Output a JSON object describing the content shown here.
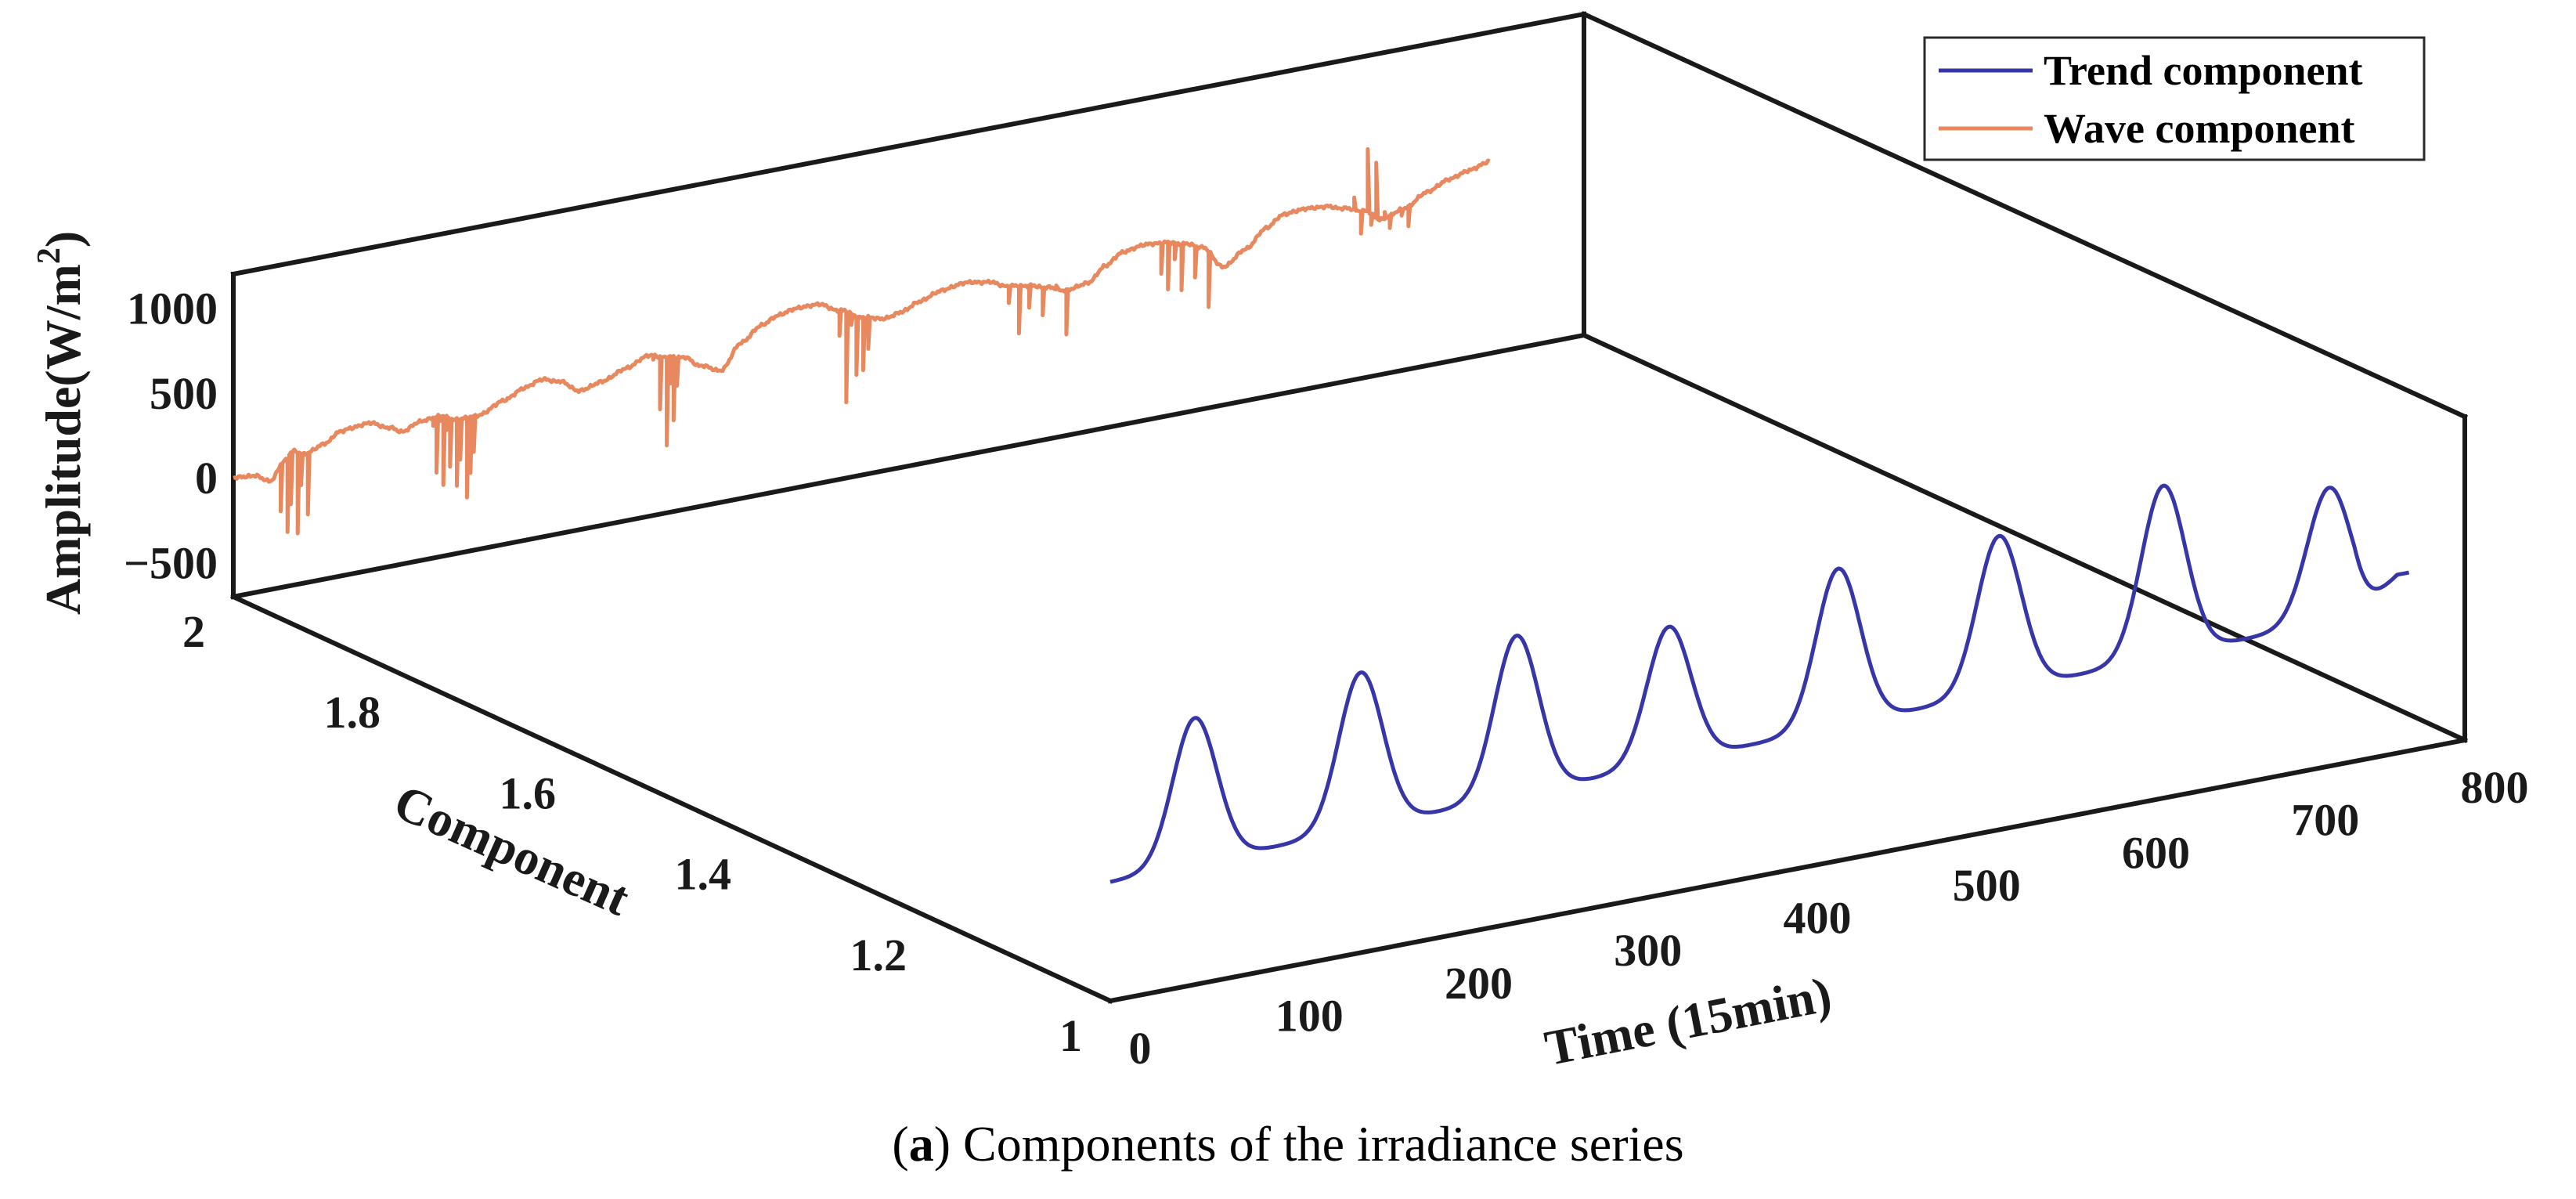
{
  "chart_data": {
    "type": "line",
    "projection": "3d",
    "caption_label": "a",
    "caption_text": ") Components of the irradiance series",
    "caption_prefix": "(",
    "xlabel": "Time (15min)",
    "ylabel": "Component",
    "zlabel_main": "Amplitude(W/m",
    "zlabel_sup": "2",
    "zlabel_close": ")",
    "xlim": [
      0,
      800
    ],
    "ylim": [
      1,
      2
    ],
    "zlim": [
      -700,
      1200
    ],
    "x_ticks": [
      "0",
      "100",
      "200",
      "300",
      "400",
      "500",
      "600",
      "700",
      "800"
    ],
    "x_tick_values": [
      0,
      100,
      200,
      300,
      400,
      500,
      600,
      700,
      800
    ],
    "y_ticks": [
      "1",
      "1.2",
      "1.4",
      "1.6",
      "1.8",
      "2"
    ],
    "y_tick_values": [
      1,
      1.2,
      1.4,
      1.6,
      1.8,
      2
    ],
    "z_ticks": [
      "1000",
      "500",
      "0",
      "−500"
    ],
    "z_tick_values": [
      1000,
      500,
      0,
      -500
    ],
    "series": [
      {
        "name": "Trend component",
        "color": "#3636a8",
        "component": 1,
        "base_start": 0,
        "base_end": 150,
        "peaks": [
          {
            "x": 50,
            "z": 870
          },
          {
            "x": 148,
            "z": 950
          },
          {
            "x": 240,
            "z": 990
          },
          {
            "x": 330,
            "z": 870
          },
          {
            "x": 430,
            "z": 1020
          },
          {
            "x": 525,
            "z": 1030
          },
          {
            "x": 622,
            "z": 1140
          },
          {
            "x": 720,
            "z": 940
          }
        ],
        "end_value": 350,
        "x_end": 767
      },
      {
        "name": "Wave component",
        "color": "#e8885e",
        "component": 2,
        "anchors": [
          [
            0,
            0
          ],
          [
            12,
            -10
          ],
          [
            22,
            -60
          ],
          [
            30,
            40
          ],
          [
            35,
            90
          ],
          [
            42,
            60
          ],
          [
            55,
            100
          ],
          [
            62,
            150
          ],
          [
            70,
            160
          ],
          [
            80,
            170
          ],
          [
            92,
            120
          ],
          [
            100,
            80
          ],
          [
            110,
            120
          ],
          [
            122,
            130
          ],
          [
            132,
            90
          ],
          [
            145,
            90
          ],
          [
            160,
            150
          ],
          [
            172,
            200
          ],
          [
            182,
            230
          ],
          [
            192,
            200
          ],
          [
            205,
            120
          ],
          [
            218,
            150
          ],
          [
            232,
            200
          ],
          [
            245,
            250
          ],
          [
            256,
            220
          ],
          [
            266,
            200
          ],
          [
            276,
            130
          ],
          [
            288,
            80
          ],
          [
            300,
            220
          ],
          [
            312,
            300
          ],
          [
            322,
            340
          ],
          [
            332,
            360
          ],
          [
            345,
            360
          ],
          [
            358,
            300
          ],
          [
            372,
            230
          ],
          [
            385,
            200
          ],
          [
            395,
            220
          ],
          [
            405,
            260
          ],
          [
            418,
            300
          ],
          [
            432,
            320
          ],
          [
            445,
            300
          ],
          [
            458,
            250
          ],
          [
            470,
            230
          ],
          [
            480,
            200
          ],
          [
            492,
            160
          ],
          [
            505,
            180
          ],
          [
            515,
            260
          ],
          [
            525,
            320
          ],
          [
            538,
            340
          ],
          [
            550,
            330
          ],
          [
            562,
            300
          ],
          [
            572,
            260
          ],
          [
            585,
            120
          ],
          [
            598,
            200
          ],
          [
            610,
            300
          ],
          [
            620,
            360
          ],
          [
            632,
            370
          ],
          [
            645,
            360
          ],
          [
            655,
            330
          ],
          [
            668,
            290
          ],
          [
            678,
            220
          ],
          [
            692,
            260
          ],
          [
            705,
            330
          ],
          [
            718,
            380
          ],
          [
            730,
            410
          ],
          [
            742,
            440
          ]
        ],
        "spikes": [
          [
            28,
            -250
          ],
          [
            32,
            -380
          ],
          [
            34,
            -220
          ],
          [
            38,
            -400
          ],
          [
            40,
            -120
          ],
          [
            44,
            -300
          ],
          [
            118,
            80
          ],
          [
            120,
            -200
          ],
          [
            122,
            100
          ],
          [
            124,
            -280
          ],
          [
            126,
            40
          ],
          [
            128,
            -180
          ],
          [
            132,
            -300
          ],
          [
            134,
            -150
          ],
          [
            138,
            -380
          ],
          [
            140,
            -240
          ],
          [
            142,
            -120
          ],
          [
            248,
            220
          ],
          [
            252,
            -80
          ],
          [
            256,
            -300
          ],
          [
            258,
            60
          ],
          [
            260,
            -160
          ],
          [
            262,
            40
          ],
          [
            358,
            150
          ],
          [
            362,
            -250
          ],
          [
            365,
            200
          ],
          [
            368,
            -100
          ],
          [
            372,
            -80
          ],
          [
            375,
            40
          ],
          [
            458,
            150
          ],
          [
            464,
            -40
          ],
          [
            470,
            100
          ],
          [
            478,
            40
          ],
          [
            486,
            200
          ],
          [
            492,
            -100
          ],
          [
            548,
            150
          ],
          [
            552,
            50
          ],
          [
            556,
            220
          ],
          [
            560,
            30
          ],
          [
            568,
            90
          ],
          [
            576,
            -100
          ],
          [
            662,
            380
          ],
          [
            666,
            160
          ],
          [
            670,
            650
          ],
          [
            672,
            200
          ],
          [
            675,
            560
          ],
          [
            680,
            260
          ],
          [
            683,
            160
          ],
          [
            690,
            220
          ],
          [
            694,
            150
          ]
        ]
      }
    ],
    "legend": {
      "position": "top-right",
      "entries": [
        "Trend component",
        "Wave component"
      ]
    }
  }
}
